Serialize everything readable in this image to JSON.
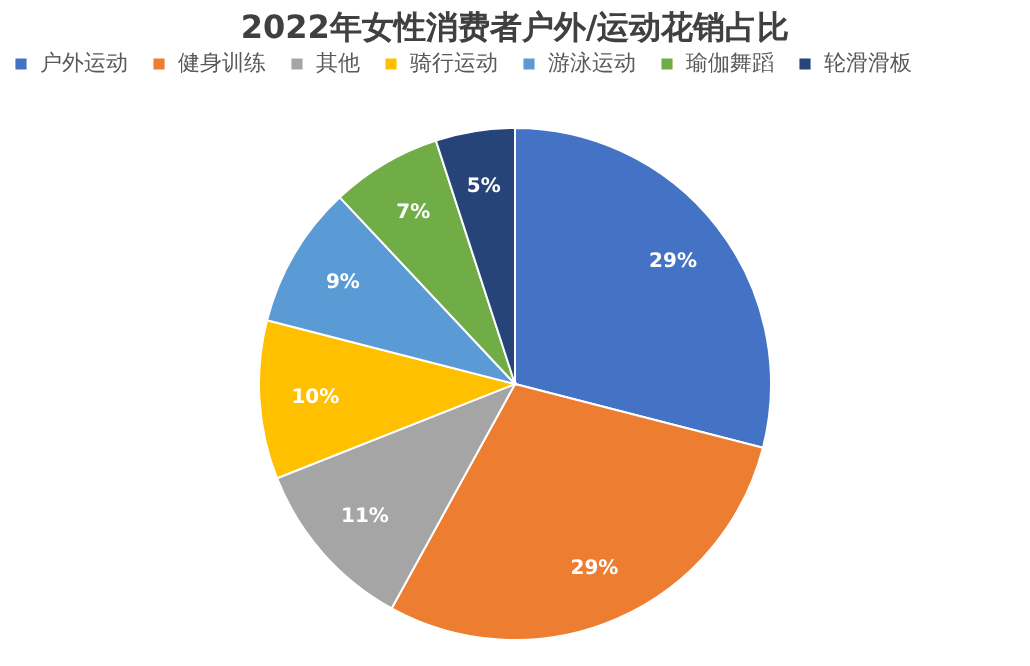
{
  "chart_data": {
    "type": "pie",
    "title": "2022年女性消费者户外/运动花销占比",
    "categories": [
      "户外运动",
      "健身训练",
      "其他",
      "骑行运动",
      "游泳运动",
      "瑜伽舞蹈",
      "轮滑滑板"
    ],
    "values": [
      29,
      29,
      11,
      10,
      9,
      7,
      5
    ],
    "value_labels": [
      "29%",
      "29%",
      "11%",
      "10%",
      "9%",
      "7%",
      "5%"
    ],
    "colors": [
      "#4472c4",
      "#ed7d31",
      "#a5a5a5",
      "#ffc000",
      "#5b9bd5",
      "#70ad47",
      "#264478"
    ],
    "legend": "top"
  }
}
